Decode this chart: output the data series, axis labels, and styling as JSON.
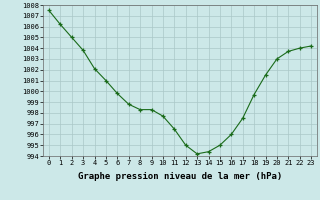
{
  "x": [
    0,
    1,
    2,
    3,
    4,
    5,
    6,
    7,
    8,
    9,
    10,
    11,
    12,
    13,
    14,
    15,
    16,
    17,
    18,
    19,
    20,
    21,
    22,
    23
  ],
  "y": [
    1007.5,
    1006.2,
    1005.0,
    1003.8,
    1002.1,
    1001.0,
    999.8,
    998.8,
    998.3,
    998.3,
    997.7,
    996.5,
    995.0,
    994.2,
    994.4,
    995.0,
    996.0,
    997.5,
    999.7,
    1001.5,
    1003.0,
    1003.7,
    1004.0,
    1004.2
  ],
  "line_color": "#1a6b1a",
  "marker_color": "#1a6b1a",
  "bg_color": "#cce8e8",
  "grid_color": "#aac8c8",
  "title": "Graphe pression niveau de la mer (hPa)",
  "ylim_min": 994,
  "ylim_max": 1008,
  "yticks": [
    994,
    995,
    996,
    997,
    998,
    999,
    1000,
    1001,
    1002,
    1003,
    1004,
    1005,
    1006,
    1007,
    1008
  ],
  "xtick_labels": [
    "0",
    "1",
    "2",
    "3",
    "4",
    "5",
    "6",
    "7",
    "8",
    "9",
    "10",
    "11",
    "12",
    "13",
    "14",
    "15",
    "16",
    "17",
    "18",
    "19",
    "20",
    "21",
    "22",
    "23"
  ],
  "title_fontsize": 6.5,
  "tick_fontsize": 5.0,
  "title_fontweight": "bold"
}
